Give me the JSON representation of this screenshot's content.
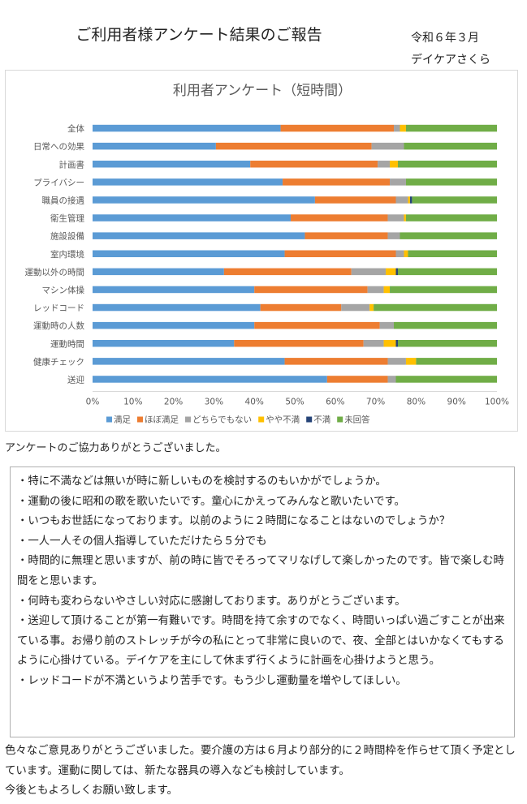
{
  "header": {
    "title": "ご利用者様アンケート結果のご報告",
    "date": "令和６年３月",
    "org": "デイケアさくら"
  },
  "chart_data": {
    "type": "bar",
    "orientation": "horizontal",
    "stacked": "percent",
    "title": "利用者アンケート（短時間）",
    "categories": [
      "全体",
      "日常への効果",
      "計画書",
      "プライバシー",
      "職員の接遇",
      "衛生管理",
      "施設設備",
      "室内環境",
      "運動以外の時間",
      "マシン体操",
      "レッドコード",
      "運動時の人数",
      "運動時間",
      "健康チェック",
      "送迎"
    ],
    "series": [
      {
        "name": "満足",
        "color": "#5b9bd5",
        "values": [
          46.5,
          30.5,
          39,
          47,
          55,
          49,
          52.5,
          47.5,
          32.5,
          40,
          41.5,
          40,
          35,
          47.5,
          58
        ]
      },
      {
        "name": "ほぼ満足",
        "color": "#ed7d31",
        "values": [
          28,
          38.5,
          31.5,
          26.5,
          20,
          24,
          20.5,
          27.5,
          31.5,
          28,
          20,
          31,
          32,
          25.5,
          15
        ]
      },
      {
        "name": "どちらでもない",
        "color": "#a5a5a5",
        "values": [
          1.5,
          8,
          3,
          4,
          3,
          4,
          3,
          2,
          8.5,
          4,
          7,
          3.5,
          5,
          4.5,
          2
        ]
      },
      {
        "name": "やや不満",
        "color": "#ffc000",
        "values": [
          1.5,
          0,
          2,
          0,
          0.5,
          0.5,
          0,
          1,
          2.5,
          1.5,
          1,
          0,
          3,
          2.5,
          0
        ]
      },
      {
        "name": "不満",
        "color": "#264478",
        "values": [
          0,
          0,
          0,
          0,
          0.5,
          0,
          0,
          0,
          0.5,
          0,
          0,
          0,
          0.5,
          0,
          0
        ]
      },
      {
        "name": "未回答",
        "color": "#70ad47",
        "values": [
          22.5,
          23,
          24.5,
          22.5,
          21,
          22.5,
          24,
          22,
          24.5,
          26.5,
          30.5,
          25.5,
          24.5,
          20,
          25
        ]
      }
    ],
    "x_ticks": [
      "0%",
      "10%",
      "20%",
      "30%",
      "40%",
      "50%",
      "60%",
      "70%",
      "80%",
      "90%",
      "100%"
    ],
    "xlim": [
      0,
      100
    ],
    "grid": false,
    "legend": "bottom"
  },
  "body": {
    "thanks": "アンケートのご協力ありがとうございました。",
    "comments": [
      "・特に不満などは無いが時に新しいものを検討するのもいかがでしょうか。",
      "・運動の後に昭和の歌を歌いたいです。童心にかえってみんなと歌いたいです。",
      "・いつもお世話になっております。以前のように２時間になることはないのでしょうか？",
      "・一人一人その個人指導していただけたら５分でも",
      "・時間的に無理と思いますが、前の時に皆でそろってマリなげして楽しかったのです。皆で楽しむ時間をと思います。",
      "・何時も変わらないやさしい対応に感謝しております。ありがとうございます。",
      "・送迎して頂けることが第一有難いです。時間を持て余すのでなく、時間いっぱい過ごすことが出来ている事。お帰り前のストレッチが今の私にとって非常に良いので、夜、全部とはいかなくてもするように心掛けている。デイケアを主にして休まず行くように計画を心掛けようと思う。",
      "・レッドコードが不満というより苦手です。もう少し運動量を増やしてほしい。"
    ],
    "footer": [
      "色々なご意見ありがとうございました。要介護の方は６月より部分的に２時間枠を作らせて頂く予定としています。運動に関しては、新たな器具の導入なども検討しています。",
      "今後ともよろしくお願い致します。"
    ]
  }
}
